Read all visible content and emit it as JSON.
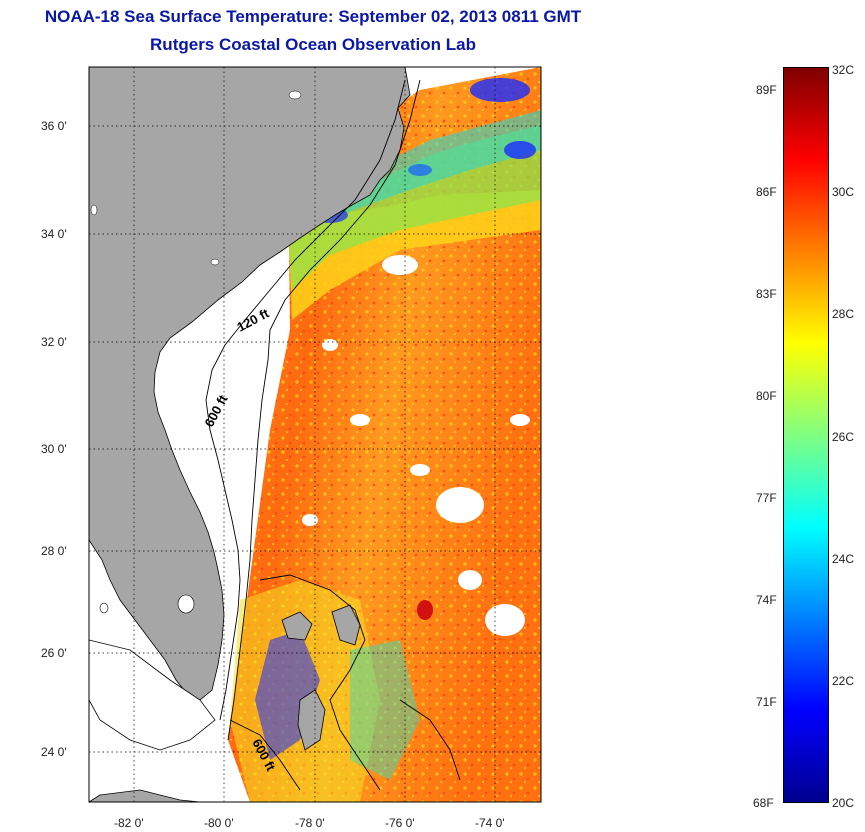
{
  "title": {
    "line1": "NOAA-18 Sea Surface Temperature:  September 02, 2013 0811 GMT",
    "line2": "Rutgers Coastal Ocean Observation Lab"
  },
  "map": {
    "lon_range": [
      -83,
      -73
    ],
    "lat_range": [
      23,
      37
    ],
    "lat_ticks": [
      "36 0'",
      "34 0'",
      "32 0'",
      "30 0'",
      "28 0'",
      "26 0'",
      "24 0'"
    ],
    "lon_ticks": [
      "-82 0'",
      "-80 0'",
      "-78 0'",
      "-76 0'",
      "-74 0'"
    ],
    "contour_labels": [
      "120 ft",
      "600 ft",
      "600 ft"
    ],
    "land_color": "#a6a6a6"
  },
  "colorbar": {
    "fahrenheit_labels": [
      "89F",
      "86F",
      "83F",
      "80F",
      "77F",
      "74F",
      "71F",
      "68F"
    ],
    "celsius_labels": [
      "32C",
      "30C",
      "28C",
      "26C",
      "24C",
      "22C",
      "20C"
    ],
    "range_c": [
      20,
      32
    ],
    "colors": [
      "#00008f",
      "#0000ff",
      "#0080ff",
      "#00ffff",
      "#80ff80",
      "#ffff00",
      "#ff8000",
      "#ff0000",
      "#800000"
    ]
  }
}
